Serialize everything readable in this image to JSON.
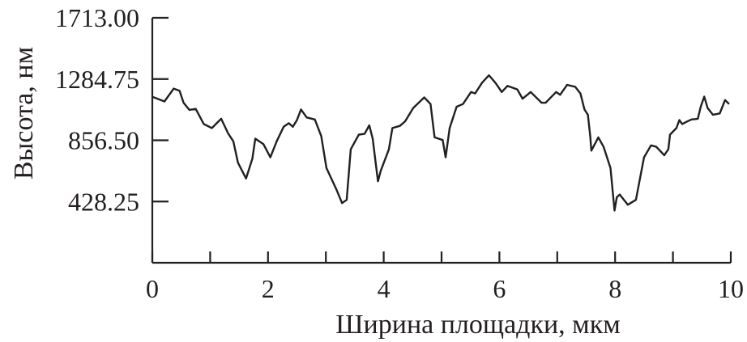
{
  "chart_data": {
    "type": "line",
    "title": "",
    "xlabel": "Ширина площадки, мкм",
    "ylabel": "Высота, нм",
    "xlim": [
      0,
      10
    ],
    "ylim": [
      0,
      1713
    ],
    "xticks": [
      0,
      1,
      2,
      3,
      4,
      5,
      6,
      7,
      8,
      9,
      10
    ],
    "xtick_labels": [
      "0",
      "2",
      "4",
      "6",
      "8",
      "10"
    ],
    "xtick_label_values": [
      0,
      2,
      4,
      6,
      8,
      10
    ],
    "yticks": [
      428.25,
      856.5,
      1284.75,
      1713
    ],
    "ytick_labels": [
      "428.25",
      "856.50",
      "1284.75",
      "1713.00"
    ],
    "grid": false,
    "line_color": "#231f20",
    "series": [
      {
        "x": [
          0,
          0.03,
          0.21,
          0.37,
          0.47,
          0.54,
          0.64,
          0.75,
          0.89,
          1.03,
          1.19,
          1.31,
          1.4,
          1.48,
          1.62,
          1.73,
          1.78,
          1.92,
          2.04,
          2.15,
          2.27,
          2.36,
          2.43,
          2.5,
          2.57,
          2.67,
          2.81,
          2.92,
          3.01,
          3.18,
          3.28,
          3.36,
          3.43,
          3.57,
          3.67,
          3.75,
          3.81,
          3.9,
          3.95,
          4.09,
          4.15,
          4.28,
          4.37,
          4.51,
          4.7,
          4.81,
          4.88,
          5.02,
          5.07,
          5.14,
          5.26,
          5.37,
          5.51,
          5.58,
          5.7,
          5.82,
          5.93,
          6.04,
          6.14,
          6.31,
          6.4,
          6.54,
          6.73,
          6.8,
          6.98,
          7.05,
          7.17,
          7.31,
          7.4,
          7.47,
          7.53,
          7.57,
          7.59,
          7.71,
          7.8,
          7.92,
          7.99,
          8.03,
          8.08,
          8.22,
          8.36,
          8.43,
          8.5,
          8.62,
          8.71,
          8.85,
          8.92,
          8.95,
          9.06,
          9.11,
          9.16,
          9.25,
          9.32,
          9.43,
          9.48,
          9.54,
          9.6,
          9.69,
          9.81,
          9.9,
          9.97
        ],
        "y": [
          1160,
          1156,
          1128,
          1218,
          1203,
          1119,
          1069,
          1076,
          970,
          942,
          1007,
          905,
          849,
          700,
          589,
          728,
          868,
          830,
          737,
          849,
          951,
          976,
          951,
          998,
          1072,
          1016,
          1002,
          886,
          663,
          514,
          417,
          440,
          793,
          896,
          901,
          961,
          868,
          570,
          644,
          793,
          942,
          957,
          989,
          1082,
          1156,
          1110,
          877,
          858,
          737,
          942,
          1091,
          1110,
          1194,
          1184,
          1259,
          1311,
          1259,
          1194,
          1237,
          1212,
          1147,
          1194,
          1119,
          1119,
          1194,
          1175,
          1244,
          1231,
          1184,
          1072,
          1035,
          886,
          784,
          877,
          812,
          663,
          365,
          458,
          477,
          406,
          440,
          589,
          737,
          821,
          812,
          752,
          793,
          896,
          942,
          998,
          970,
          989,
          1002,
          1007,
          1091,
          1162,
          1082,
          1035,
          1044,
          1138,
          1110
        ]
      }
    ]
  }
}
